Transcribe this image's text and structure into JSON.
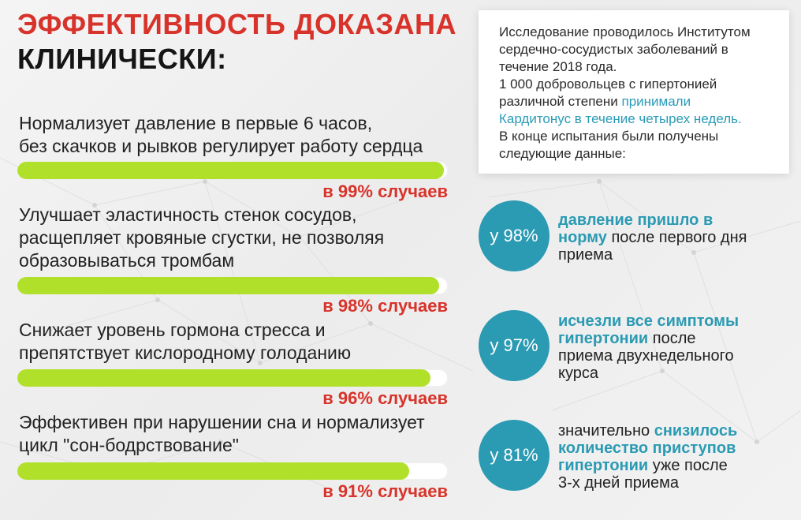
{
  "colors": {
    "red": "#d8332a",
    "teal": "#2b9ab3",
    "bar_fill": "#b1e02a",
    "bar_track": "#ffffff"
  },
  "header": {
    "title_line1": "ЭФФЕКТИВНОСТЬ ДОКАЗАНА",
    "title_line2": "КЛИНИЧЕСКИ:"
  },
  "effects": [
    {
      "line1": "Нормализует давление в первые 6 часов,",
      "line2": "без скачков и рывков регулирует работу сердца",
      "line3": "",
      "percent": 99,
      "label": "в 99% случаев"
    },
    {
      "line1": "Улучшает эластичность стенок сосудов,",
      "line2": "расщепляет кровяные сгустки, не позволяя",
      "line3": "образовываться тромбам",
      "percent": 98,
      "label": "в 98% случаев"
    },
    {
      "line1": "Снижает уровень гормона стресса и",
      "line2": "препятствует кислородному голоданию",
      "line3": "",
      "percent": 96,
      "label": "в 96% случаев"
    },
    {
      "line1": "Эффективен при нарушении сна и нормализует",
      "line2": "цикл \"сон-бодрствование\"",
      "line3": "",
      "percent": 91,
      "label": "в 91% случаев"
    }
  ],
  "study": {
    "line1": "Исследование проводилось Институтом",
    "line2": "сердечно-сосудистых заболеваний в",
    "line3": "течение 2018 года.",
    "line4": "1 000 добровольцев с гипертонией",
    "line5_plain": "различной степени ",
    "line5_accent": "принимали",
    "line6_accent": "Кардитонус в течение четырех недель.",
    "line7": "В конце испытания были получены",
    "line8": "следующие данные:"
  },
  "results": [
    {
      "circle_label": "у 98%",
      "hl1": "давление пришло в",
      "hl2": "норму",
      "rest2": " после первого дня",
      "rest3": "приема"
    },
    {
      "circle_label": "у 97%",
      "hl1": "исчезли все симптомы",
      "hl2": "гипертонии",
      "rest2": " после",
      "rest3": "приема двухнедельного",
      "rest4": "курса"
    },
    {
      "circle_label": "у 81%",
      "pre1": "значительно ",
      "hl1": "снизилось",
      "hl2": "количество приступов",
      "hl3": "гипертонии",
      "rest3": " уже после",
      "rest4": "3-х дней приема"
    }
  ]
}
